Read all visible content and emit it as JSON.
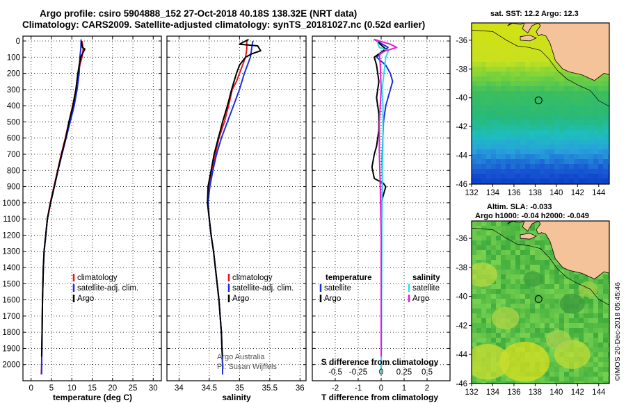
{
  "header": {
    "line1": "Argo profile: csiro 5904888_152 27-Oct-2018 40.18S 138.32E (NRT data)",
    "line2": "Climatology: CARS2009. Satellite-adjusted climatology: synTS_20181027.nc (0.52d earlier)"
  },
  "colors": {
    "climatology": "#e8141d",
    "satellite": "#1a2fe0",
    "argo": "#000000",
    "salinity_sat": "#27e0e6",
    "salinity_argo": "#e81ad8"
  },
  "watermark": {
    "line1": "Argo Australia",
    "line2": "PI: Susan Wijffels"
  },
  "map_sst": {
    "title": "sat. SST: 12.2 Argo: 12.3"
  },
  "map_sla": {
    "title1": "Altim. SLA: -0.033",
    "title2": "Argo h1000: -0.04 h2000: -0.049"
  },
  "credit": "©IMOS 20-Dec-2018 05:45:46",
  "chart_data": [
    {
      "type": "line",
      "xlabel": "temperature (deg C)",
      "xlim": [
        -2,
        32
      ],
      "ylim": [
        2100,
        -30
      ],
      "xticks": [
        0,
        5,
        10,
        15,
        20,
        25,
        30
      ],
      "yticks": [
        0,
        100,
        200,
        300,
        400,
        500,
        600,
        700,
        800,
        900,
        1000,
        1100,
        1200,
        1300,
        1400,
        1500,
        1600,
        1700,
        1800,
        1900,
        2000
      ],
      "legend": [
        "climatology",
        "satellite-adj. clim.",
        "Argo"
      ],
      "series": [
        {
          "name": "climatology",
          "color": "#e8141d",
          "points": [
            [
              12.5,
              0
            ],
            [
              12.8,
              50
            ],
            [
              12.5,
              100
            ],
            [
              12,
              150
            ],
            [
              11.5,
              200
            ],
            [
              11,
              300
            ],
            [
              10.2,
              400
            ],
            [
              9.3,
              500
            ],
            [
              8.4,
              600
            ],
            [
              7.4,
              700
            ],
            [
              6.5,
              800
            ],
            [
              5.6,
              900
            ],
            [
              4.7,
              1000
            ],
            [
              4.0,
              1100
            ],
            [
              3.6,
              1200
            ],
            [
              3.2,
              1300
            ],
            [
              3.0,
              1400
            ],
            [
              2.9,
              1500
            ],
            [
              2.8,
              1600
            ],
            [
              2.7,
              1800
            ],
            [
              2.6,
              2000
            ],
            [
              2.5,
              2060
            ]
          ]
        },
        {
          "name": "satellite-adj. clim.",
          "color": "#1a2fe0",
          "points": [
            [
              12.3,
              -10
            ],
            [
              12.2,
              50
            ],
            [
              12,
              100
            ],
            [
              11.8,
              200
            ],
            [
              11.3,
              300
            ],
            [
              10.6,
              400
            ],
            [
              9.6,
              500
            ],
            [
              8.6,
              600
            ],
            [
              7.6,
              700
            ],
            [
              6.6,
              800
            ],
            [
              5.7,
              900
            ],
            [
              4.8,
              1000
            ],
            [
              4.0,
              1100
            ],
            [
              3.6,
              1200
            ],
            [
              3.2,
              1300
            ],
            [
              3.0,
              1400
            ],
            [
              2.9,
              1500
            ],
            [
              2.8,
              1600
            ],
            [
              2.7,
              1800
            ],
            [
              2.6,
              2000
            ],
            [
              2.6,
              2060
            ]
          ]
        },
        {
          "name": "Argo",
          "color": "#000000",
          "points": [
            [
              12.3,
              0
            ],
            [
              12.6,
              40
            ],
            [
              13.2,
              50
            ],
            [
              12.6,
              80
            ],
            [
              12.2,
              100
            ],
            [
              11.8,
              150
            ],
            [
              11.5,
              200
            ],
            [
              11,
              300
            ],
            [
              10.3,
              400
            ],
            [
              9.3,
              500
            ],
            [
              8.5,
              600
            ],
            [
              7.5,
              700
            ],
            [
              6.6,
              800
            ],
            [
              5.7,
              900
            ],
            [
              4.8,
              1000
            ],
            [
              4.0,
              1100
            ],
            [
              3.6,
              1200
            ],
            [
              3.2,
              1300
            ],
            [
              3.0,
              1400
            ],
            [
              2.9,
              1500
            ],
            [
              2.8,
              1600
            ],
            [
              2.7,
              1800
            ],
            [
              2.6,
              1950
            ]
          ]
        }
      ]
    },
    {
      "type": "line",
      "xlabel": "salinity",
      "xlim": [
        33.8,
        36.1
      ],
      "ylim": [
        2100,
        -30
      ],
      "xticks": [
        34,
        34.5,
        35,
        35.5,
        36
      ],
      "xticklabels": [
        "34",
        "34.5",
        "35",
        "35.5",
        "36"
      ],
      "legend": [
        "climatology",
        "satellite-adj. clim.",
        "Argo"
      ],
      "series": [
        {
          "name": "climatology",
          "color": "#e8141d",
          "points": [
            [
              35.12,
              0
            ],
            [
              35.12,
              50
            ],
            [
              35.1,
              100
            ],
            [
              35.05,
              150
            ],
            [
              35.0,
              200
            ],
            [
              34.95,
              250
            ],
            [
              34.88,
              300
            ],
            [
              34.82,
              400
            ],
            [
              34.75,
              500
            ],
            [
              34.66,
              600
            ],
            [
              34.6,
              700
            ],
            [
              34.55,
              800
            ],
            [
              34.5,
              900
            ],
            [
              34.47,
              1000
            ],
            [
              34.5,
              1100
            ],
            [
              34.53,
              1200
            ],
            [
              34.57,
              1300
            ],
            [
              34.6,
              1400
            ],
            [
              34.63,
              1500
            ],
            [
              34.66,
              1600
            ],
            [
              34.68,
              1700
            ],
            [
              34.7,
              1800
            ],
            [
              34.71,
              1900
            ],
            [
              34.72,
              2000
            ],
            [
              34.72,
              2060
            ]
          ]
        },
        {
          "name": "satellite-adj. clim.",
          "color": "#1a2fe0",
          "points": [
            [
              35.22,
              0
            ],
            [
              35.2,
              50
            ],
            [
              35.18,
              100
            ],
            [
              35.13,
              150
            ],
            [
              35.08,
              200
            ],
            [
              35.0,
              300
            ],
            [
              34.9,
              400
            ],
            [
              34.8,
              500
            ],
            [
              34.7,
              600
            ],
            [
              34.62,
              700
            ],
            [
              34.56,
              800
            ],
            [
              34.51,
              900
            ],
            [
              34.48,
              1000
            ],
            [
              34.5,
              1100
            ],
            [
              34.53,
              1200
            ],
            [
              34.57,
              1300
            ],
            [
              34.6,
              1400
            ],
            [
              34.63,
              1500
            ],
            [
              34.66,
              1600
            ],
            [
              34.68,
              1700
            ],
            [
              34.7,
              1800
            ],
            [
              34.71,
              1900
            ],
            [
              34.72,
              2000
            ],
            [
              34.72,
              2060
            ]
          ]
        },
        {
          "name": "Argo",
          "color": "#000000",
          "points": [
            [
              35.15,
              -10
            ],
            [
              35.0,
              20
            ],
            [
              35.3,
              30
            ],
            [
              35.35,
              60
            ],
            [
              35.2,
              80
            ],
            [
              35.1,
              100
            ],
            [
              35.0,
              150
            ],
            [
              34.95,
              200
            ],
            [
              34.87,
              300
            ],
            [
              34.8,
              400
            ],
            [
              34.72,
              500
            ],
            [
              34.65,
              600
            ],
            [
              34.58,
              700
            ],
            [
              34.53,
              800
            ],
            [
              34.48,
              900
            ],
            [
              34.47,
              1000
            ],
            [
              34.5,
              1100
            ],
            [
              34.53,
              1200
            ],
            [
              34.57,
              1300
            ],
            [
              34.6,
              1400
            ],
            [
              34.63,
              1500
            ],
            [
              34.66,
              1600
            ],
            [
              34.68,
              1700
            ],
            [
              34.7,
              1800
            ],
            [
              34.71,
              1900
            ],
            [
              34.72,
              1950
            ]
          ]
        }
      ]
    },
    {
      "type": "line",
      "xlabel": "T difference from climatology",
      "x2label": "S difference from climatology",
      "xlim": [
        -3,
        3
      ],
      "x2lim": [
        -0.75,
        0.75
      ],
      "ylim": [
        2100,
        -30
      ],
      "xticks": [
        -2,
        -1,
        0,
        1,
        2
      ],
      "x2ticks": [
        -0.5,
        -0.25,
        0,
        0.25,
        0.5
      ],
      "x2ticklabels": [
        "-0.5",
        "-0.25",
        "0",
        "0.25",
        "0.5"
      ],
      "legend_temperature_title": "temperature",
      "legend_salinity_title": "salinity",
      "legend_temperature": [
        "satellite",
        "Argo"
      ],
      "legend_salinity": [
        "satellite",
        "Argo"
      ],
      "series": [
        {
          "name": "temperature satellite",
          "color": "#1a2fe0",
          "axis": "T",
          "points": [
            [
              -0.3,
              -10
            ],
            [
              0.3,
              40
            ],
            [
              -0.2,
              100
            ],
            [
              0.2,
              150
            ],
            [
              0.4,
              200
            ],
            [
              0.5,
              250
            ],
            [
              0.3,
              350
            ],
            [
              0.2,
              400
            ],
            [
              0.1,
              500
            ],
            [
              0.05,
              700
            ],
            [
              0.05,
              900
            ],
            [
              0.02,
              1200
            ],
            [
              0,
              2060
            ]
          ]
        },
        {
          "name": "temperature Argo",
          "color": "#000000",
          "axis": "T",
          "points": [
            [
              -0.2,
              0
            ],
            [
              0.2,
              50
            ],
            [
              -0.3,
              100
            ],
            [
              -0.2,
              150
            ],
            [
              -0.1,
              250
            ],
            [
              -0.2,
              350
            ],
            [
              -0.1,
              450
            ],
            [
              -0.1,
              550
            ],
            [
              -0.2,
              650
            ],
            [
              -0.3,
              700
            ],
            [
              -0.4,
              780
            ],
            [
              -0.3,
              850
            ],
            [
              0.1,
              880
            ],
            [
              0.2,
              900
            ],
            [
              0,
              1000
            ],
            [
              0,
              1100
            ],
            [
              0,
              1300
            ],
            [
              0,
              1600
            ],
            [
              0,
              1950
            ]
          ]
        },
        {
          "name": "salinity satellite",
          "color": "#27e0e6",
          "axis": "S",
          "points": [
            [
              -0.05,
              -10
            ],
            [
              -0.02,
              40
            ],
            [
              0.08,
              60
            ],
            [
              0.05,
              100
            ],
            [
              0.03,
              200
            ],
            [
              0.01,
              300
            ],
            [
              0.02,
              400
            ],
            [
              0.02,
              600
            ],
            [
              0.01,
              900
            ],
            [
              0.005,
              1500
            ],
            [
              0,
              2060
            ]
          ]
        },
        {
          "name": "salinity Argo",
          "color": "#e81ad8",
          "axis": "S",
          "points": [
            [
              -0.08,
              -10
            ],
            [
              0.1,
              20
            ],
            [
              0.17,
              40
            ],
            [
              0.05,
              60
            ],
            [
              -0.02,
              80
            ],
            [
              -0.01,
              150
            ],
            [
              0,
              300
            ],
            [
              -0.02,
              500
            ],
            [
              -0.02,
              700
            ],
            [
              -0.01,
              900
            ],
            [
              0,
              1200
            ],
            [
              0,
              1950
            ]
          ]
        }
      ]
    },
    {
      "type": "heatmap",
      "title": "sat. SST: 12.2 Argo: 12.3",
      "xlim": [
        132,
        145
      ],
      "ylim": [
        -46,
        -34.8
      ],
      "xticks": [
        132,
        134,
        136,
        138,
        140,
        142,
        144
      ],
      "yticks": [
        -36,
        -38,
        -40,
        -42,
        -44,
        -46
      ],
      "argo_location": [
        138.32,
        -40.18
      ]
    },
    {
      "type": "heatmap",
      "title": "Altim. SLA: -0.033",
      "subtitle": "Argo h1000: -0.04 h2000: -0.049",
      "xlim": [
        132,
        145
      ],
      "ylim": [
        -46,
        -34.8
      ],
      "xticks": [
        132,
        134,
        136,
        138,
        140,
        142,
        144
      ],
      "yticks": [
        -36,
        -38,
        -40,
        -42,
        -44,
        -46
      ],
      "argo_location": [
        138.32,
        -40.18
      ]
    }
  ]
}
